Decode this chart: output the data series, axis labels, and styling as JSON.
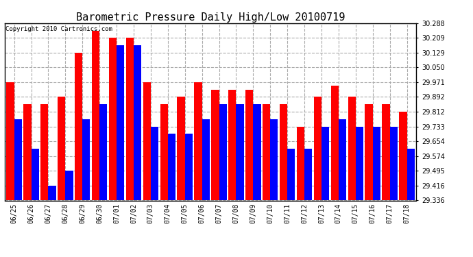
{
  "title": "Barometric Pressure Daily High/Low 20100719",
  "copyright": "Copyright 2010 Cartronics.com",
  "dates": [
    "06/25",
    "06/26",
    "06/27",
    "06/28",
    "06/29",
    "06/30",
    "07/01",
    "07/02",
    "07/03",
    "07/04",
    "07/05",
    "07/06",
    "07/07",
    "07/08",
    "07/09",
    "07/10",
    "07/11",
    "07/12",
    "07/13",
    "07/14",
    "07/15",
    "07/16",
    "07/17",
    "07/18"
  ],
  "highs": [
    29.971,
    29.852,
    29.852,
    29.892,
    30.129,
    30.248,
    30.209,
    30.209,
    29.971,
    29.852,
    29.892,
    29.971,
    29.931,
    29.931,
    29.931,
    29.852,
    29.852,
    29.733,
    29.892,
    29.951,
    29.892,
    29.852,
    29.852,
    29.812
  ],
  "lows": [
    29.773,
    29.614,
    29.416,
    29.495,
    29.773,
    29.852,
    30.169,
    30.169,
    29.733,
    29.693,
    29.693,
    29.773,
    29.852,
    29.852,
    29.852,
    29.773,
    29.614,
    29.614,
    29.733,
    29.773,
    29.733,
    29.733,
    29.733,
    29.614
  ],
  "high_color": "#ff0000",
  "low_color": "#0000ff",
  "bg_color": "#ffffff",
  "grid_color": "#aaaaaa",
  "yticks": [
    29.336,
    29.416,
    29.495,
    29.574,
    29.654,
    29.733,
    29.812,
    29.892,
    29.971,
    30.05,
    30.129,
    30.209,
    30.288
  ],
  "ymin": 29.336,
  "ymax": 30.288,
  "title_fontsize": 11,
  "copyright_fontsize": 6.5,
  "tick_fontsize": 7
}
